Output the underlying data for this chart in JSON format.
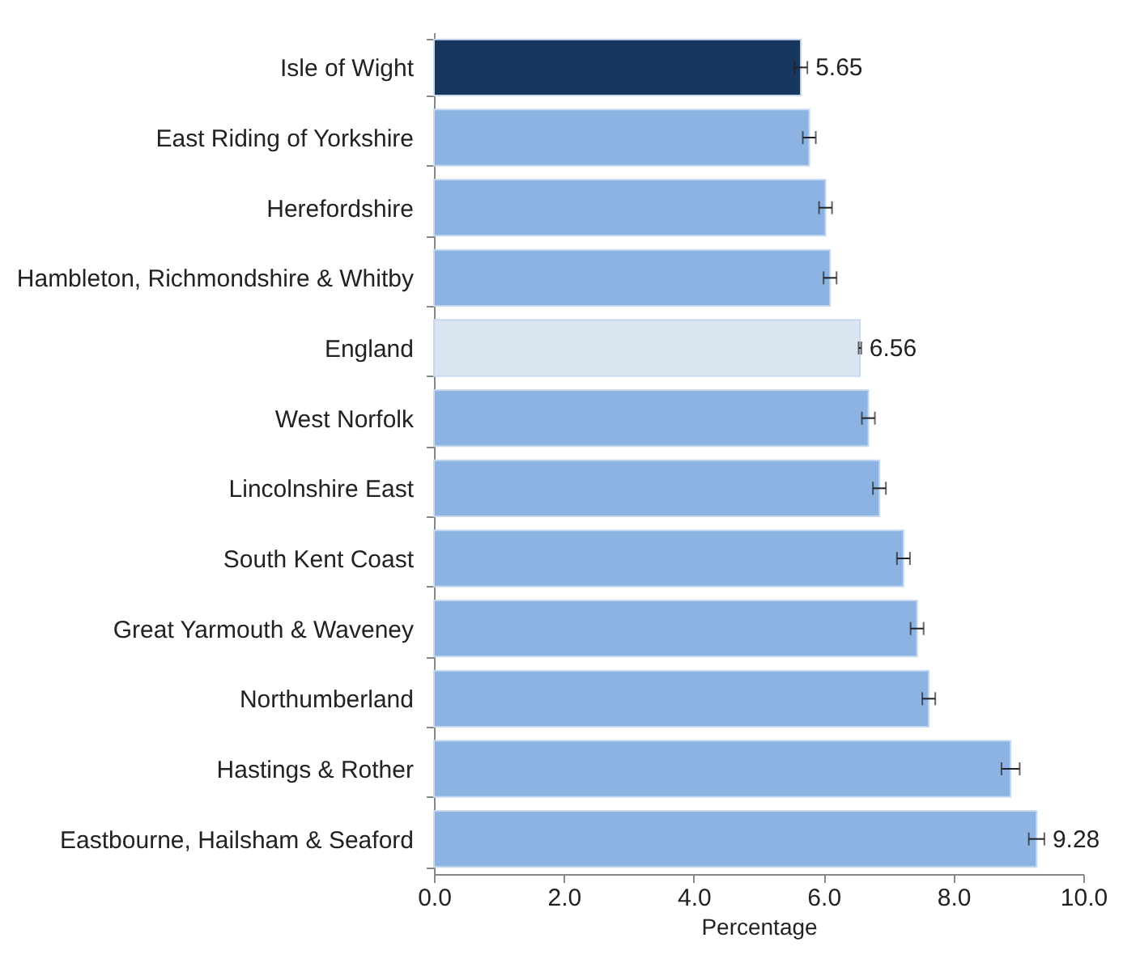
{
  "chart_data": {
    "type": "bar",
    "orientation": "horizontal",
    "xlabel": "Percentage",
    "categories": [
      "Isle of Wight",
      "East Riding of Yorkshire",
      "Herefordshire",
      "Hambleton, Richmondshire & Whitby",
      "England",
      "West Norfolk",
      "Lincolnshire East",
      "South Kent Coast",
      "Great Yarmouth & Waveney",
      "Northumberland",
      "Hastings & Rother",
      "Eastbourne, Hailsham & Seaford"
    ],
    "values": [
      5.65,
      5.78,
      6.03,
      6.1,
      6.56,
      6.69,
      6.86,
      7.23,
      7.44,
      7.62,
      8.88,
      9.28
    ],
    "errors": [
      0.1,
      0.1,
      0.1,
      0.1,
      0.02,
      0.1,
      0.1,
      0.1,
      0.1,
      0.1,
      0.14,
      0.12
    ],
    "colors": [
      "#17375e",
      "#8db3e2",
      "#8db3e2",
      "#8db3e2",
      "#dbe5f1",
      "#8db3e2",
      "#8db3e2",
      "#8db3e2",
      "#8db3e2",
      "#8db3e2",
      "#8db3e2",
      "#8db3e2"
    ],
    "value_labels": [
      "5.65",
      null,
      null,
      null,
      "6.56",
      null,
      null,
      null,
      null,
      null,
      null,
      "9.28"
    ],
    "xlim": [
      0,
      10
    ],
    "xticks": [
      {
        "value": 0,
        "label": "0.0"
      },
      {
        "value": 2,
        "label": "2.0"
      },
      {
        "value": 4,
        "label": "4.0"
      },
      {
        "value": 6,
        "label": "6.0"
      },
      {
        "value": 8,
        "label": "8.0"
      },
      {
        "value": 10,
        "label": "10.0"
      }
    ],
    "grid": false
  }
}
